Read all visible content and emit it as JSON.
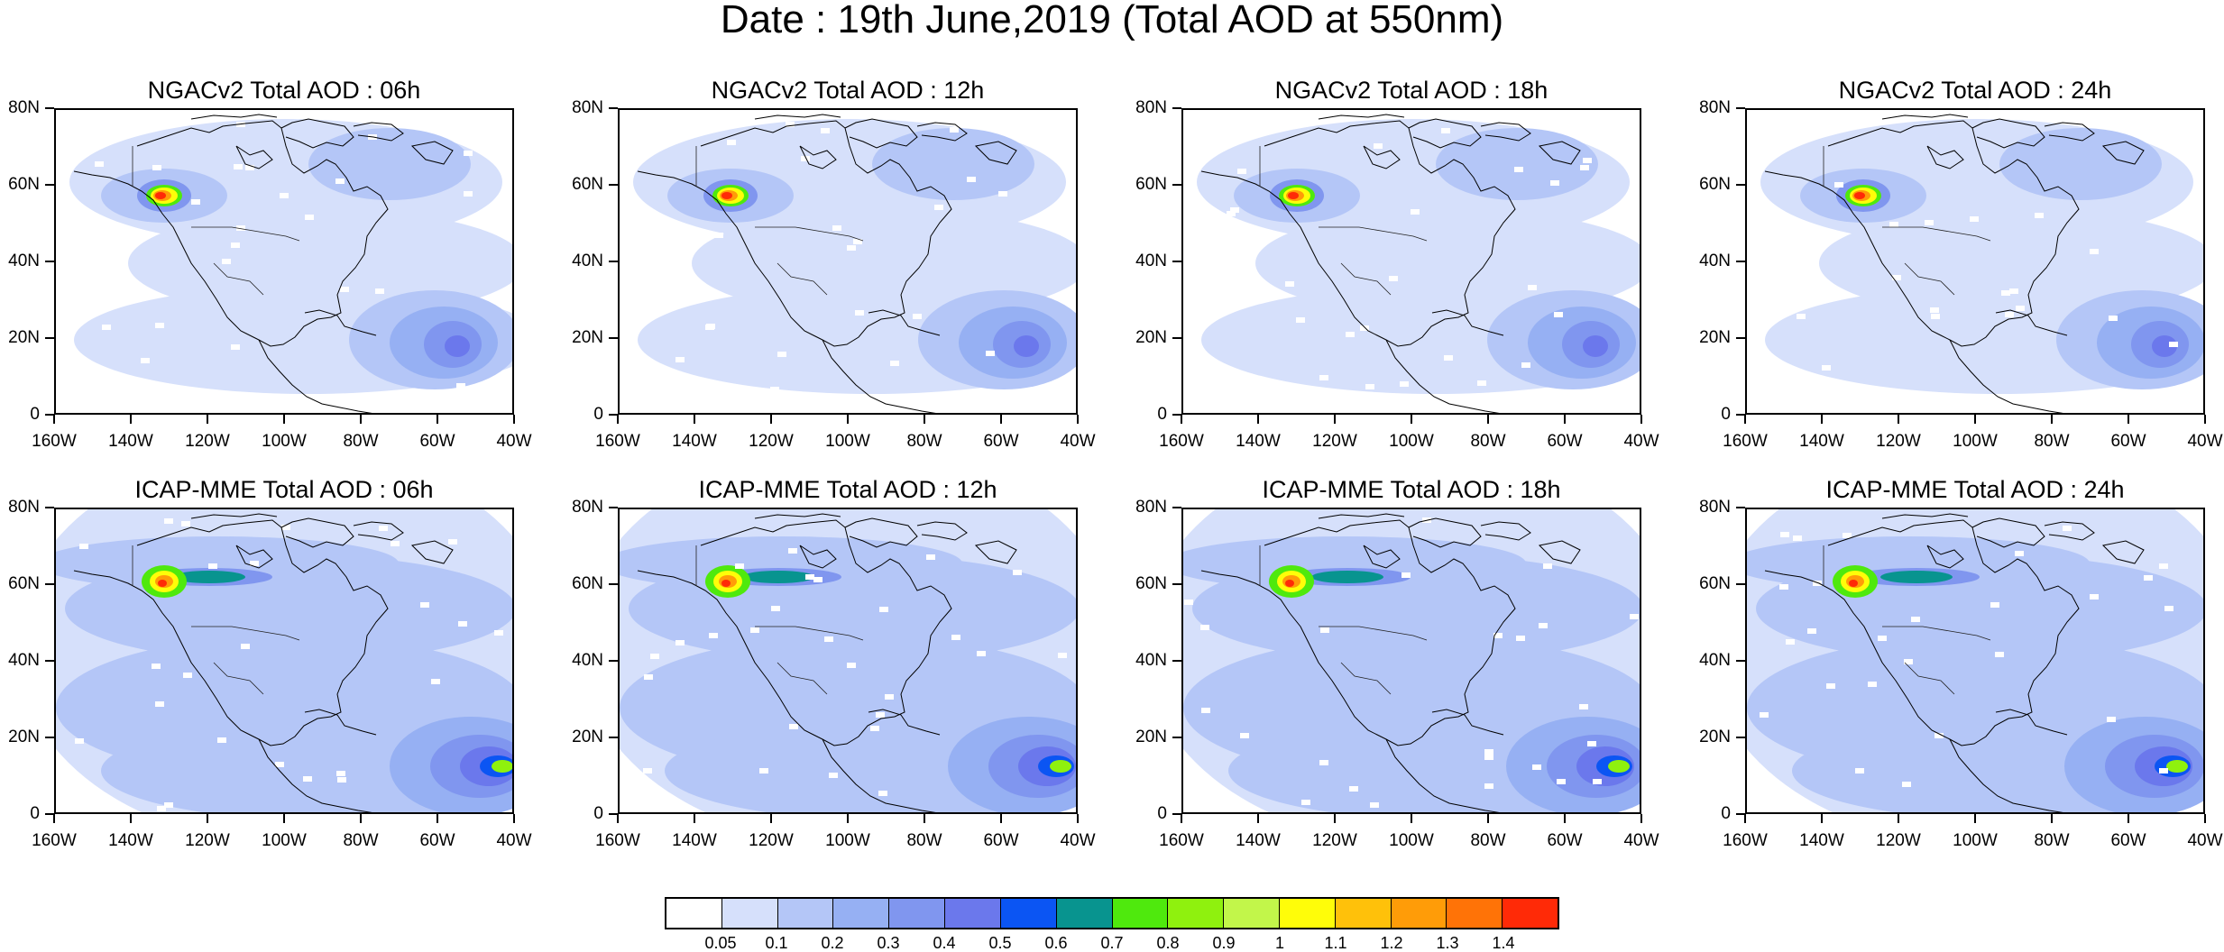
{
  "title": "Date : 19th June,2019 (Total AOD at 550nm)",
  "y_tick_labels": [
    "80N",
    "60N",
    "40N",
    "20N",
    "0"
  ],
  "x_tick_labels": [
    "160W",
    "140W",
    "120W",
    "100W",
    "80W",
    "60W",
    "40W"
  ],
  "panels": [
    {
      "title": "NGACv2 Total AOD : 06h",
      "model": "NGACv2",
      "hour": "06h"
    },
    {
      "title": "NGACv2 Total AOD : 12h",
      "model": "NGACv2",
      "hour": "12h"
    },
    {
      "title": "NGACv2 Total AOD : 18h",
      "model": "NGACv2",
      "hour": "18h"
    },
    {
      "title": "NGACv2 Total AOD : 24h",
      "model": "NGACv2",
      "hour": "24h"
    },
    {
      "title": "ICAP-MME Total AOD : 06h",
      "model": "ICAP-MME",
      "hour": "06h"
    },
    {
      "title": "ICAP-MME Total AOD : 12h",
      "model": "ICAP-MME",
      "hour": "12h"
    },
    {
      "title": "ICAP-MME Total AOD : 18h",
      "model": "ICAP-MME",
      "hour": "18h"
    },
    {
      "title": "ICAP-MME Total AOD : 24h",
      "model": "ICAP-MME",
      "hour": "24h"
    }
  ],
  "colorbar": {
    "labels": [
      "0.05",
      "0.1",
      "0.2",
      "0.3",
      "0.4",
      "0.5",
      "0.6",
      "0.7",
      "0.8",
      "0.9",
      "1",
      "1.1",
      "1.2",
      "1.3",
      "1.4"
    ],
    "colors": [
      "#ffffff",
      "#d6e0fb",
      "#b4c6f7",
      "#96b0f3",
      "#8096ef",
      "#6b78ec",
      "#0b55f3",
      "#08948f",
      "#4fe90d",
      "#8ff10e",
      "#c2f64a",
      "#fffd09",
      "#ffc10a",
      "#ff9c08",
      "#ff7307",
      "#ff2a07"
    ]
  }
}
